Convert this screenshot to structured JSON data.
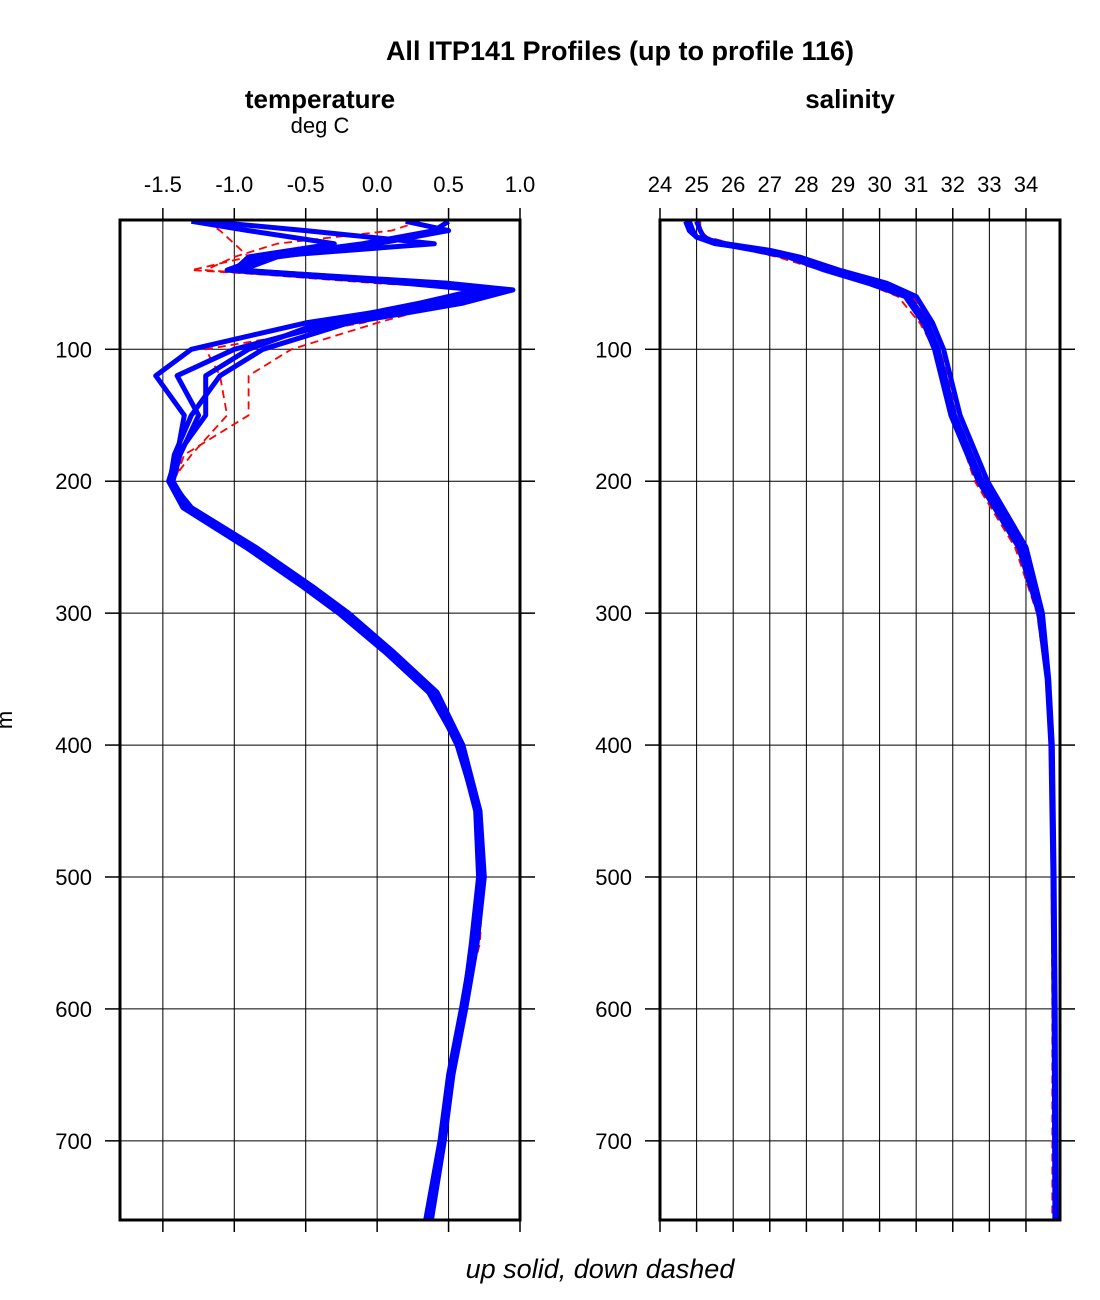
{
  "chart_data": [
    {
      "type": "line",
      "title": "All ITP141 Profiles (up to profile 116)",
      "panel_title": "temperature",
      "xlabel": "deg C",
      "ylabel": "m",
      "xlim": [
        -1.8,
        1.0
      ],
      "ylim": [
        2,
        760
      ],
      "y_reversed": true,
      "grid": true,
      "x_ticks": [
        "-1.5",
        "-1.0",
        "-0.5",
        "0.0",
        "0.5",
        "1.0"
      ],
      "x_tick_values": [
        -1.5,
        -1.0,
        -0.5,
        0.0,
        0.5,
        1.0
      ],
      "y_ticks": [
        "100",
        "200",
        "300",
        "400",
        "500",
        "600",
        "700"
      ],
      "y_tick_values": [
        100,
        200,
        300,
        400,
        500,
        600,
        700
      ],
      "depth": [
        3,
        10,
        20,
        30,
        40,
        50,
        55,
        65,
        80,
        100,
        120,
        150,
        180,
        200,
        220,
        250,
        280,
        300,
        330,
        360,
        400,
        450,
        500,
        550,
        600,
        650,
        700,
        760
      ],
      "series": [
        {
          "style": "up",
          "values": [
            0.5,
            0.4,
            -0.1,
            -0.8,
            -1.0,
            0.5,
            0.95,
            0.6,
            -0.2,
            -0.8,
            -1.1,
            -1.3,
            -1.42,
            -1.45,
            -1.35,
            -0.9,
            -0.5,
            -0.25,
            0.1,
            0.4,
            0.58,
            0.7,
            0.73,
            0.68,
            0.6,
            0.52,
            0.45,
            0.36
          ]
        },
        {
          "style": "up",
          "values": [
            -1.3,
            -0.9,
            -0.3,
            -0.9,
            -1.0,
            0.3,
            0.8,
            0.4,
            -0.5,
            -1.3,
            -1.55,
            -1.35,
            -1.4,
            -1.45,
            -1.3,
            -0.85,
            -0.45,
            -0.2,
            0.12,
            0.42,
            0.6,
            0.72,
            0.75,
            0.7,
            0.62,
            0.53,
            0.47,
            0.38
          ]
        },
        {
          "style": "up",
          "values": [
            0.2,
            0.5,
            0.0,
            -0.7,
            -0.95,
            0.4,
            0.85,
            0.5,
            -0.3,
            -1.0,
            -1.4,
            -1.25,
            -1.38,
            -1.43,
            -1.32,
            -0.88,
            -0.48,
            -0.22,
            0.08,
            0.38,
            0.56,
            0.7,
            0.72,
            0.67,
            0.59,
            0.5,
            0.44,
            0.34
          ]
        },
        {
          "style": "up",
          "values": [
            -1.2,
            -0.5,
            0.4,
            -0.8,
            -1.05,
            0.2,
            0.7,
            0.3,
            -0.4,
            -0.9,
            -1.2,
            -1.2,
            -1.4,
            -1.46,
            -1.36,
            -0.92,
            -0.52,
            -0.27,
            0.06,
            0.36,
            0.57,
            0.69,
            0.71,
            0.66,
            0.6,
            0.51,
            0.45,
            0.35
          ]
        },
        {
          "style": "down",
          "values": [
            -1.2,
            -1.1,
            -1.0,
            -0.9,
            -1.3,
            0.2,
            0.9,
            0.5,
            0.0,
            -0.6,
            -0.9,
            -0.9,
            -1.35,
            -1.42,
            -1.3,
            -0.86,
            -0.5,
            -0.24,
            0.1,
            0.38,
            0.57,
            0.71,
            0.74,
            0.72,
            0.6,
            0.52,
            0.45,
            0.37
          ]
        },
        {
          "style": "down",
          "values": [
            0.3,
            0.1,
            -0.7,
            -1.0,
            -1.2,
            0.0,
            0.8,
            0.3,
            -0.1,
            -1.2,
            -1.1,
            -1.05,
            -1.3,
            -1.44,
            -1.34,
            -0.9,
            -0.49,
            -0.26,
            0.07,
            0.35,
            0.58,
            0.7,
            0.72,
            0.69,
            0.61,
            0.51,
            0.44,
            0.36
          ]
        }
      ]
    },
    {
      "type": "line",
      "panel_title": "salinity",
      "xlim": [
        24,
        34.93
      ],
      "ylim": [
        2,
        760
      ],
      "y_reversed": true,
      "grid": true,
      "x_ticks": [
        "24",
        "25",
        "26",
        "27",
        "28",
        "29",
        "30",
        "31",
        "32",
        "33",
        "34"
      ],
      "x_tick_values": [
        24,
        25,
        26,
        27,
        28,
        29,
        30,
        31,
        32,
        33,
        34
      ],
      "y_ticks": [
        "100",
        "200",
        "300",
        "400",
        "500",
        "600",
        "700"
      ],
      "y_tick_values": [
        100,
        200,
        300,
        400,
        500,
        600,
        700
      ],
      "depth": [
        3,
        10,
        15,
        20,
        25,
        30,
        40,
        50,
        60,
        80,
        100,
        150,
        200,
        250,
        300,
        350,
        400,
        500,
        600,
        760
      ],
      "series": [
        {
          "style": "up",
          "values": [
            24.8,
            24.9,
            25.0,
            25.5,
            26.8,
            27.6,
            28.6,
            29.9,
            30.8,
            31.3,
            31.6,
            32.05,
            32.8,
            33.9,
            34.4,
            34.6,
            34.7,
            34.75,
            34.78,
            34.8
          ]
        },
        {
          "style": "up",
          "values": [
            24.7,
            24.8,
            25.0,
            25.8,
            27.0,
            27.8,
            28.9,
            30.2,
            31.0,
            31.45,
            31.75,
            32.2,
            32.95,
            34.0,
            34.45,
            34.62,
            34.72,
            34.77,
            34.8,
            34.82
          ]
        },
        {
          "style": "up",
          "values": [
            25.0,
            25.1,
            25.2,
            25.6,
            26.6,
            27.5,
            28.5,
            29.7,
            30.7,
            31.2,
            31.5,
            31.95,
            32.7,
            33.8,
            34.35,
            34.58,
            34.68,
            34.74,
            34.77,
            34.79
          ]
        },
        {
          "style": "down",
          "values": [
            24.8,
            24.9,
            25.0,
            25.6,
            26.4,
            27.2,
            28.4,
            29.6,
            30.5,
            31.1,
            31.5,
            32.0,
            32.6,
            33.7,
            34.3,
            34.55,
            34.65,
            34.7,
            34.72,
            34.72
          ]
        },
        {
          "style": "down",
          "values": [
            25.1,
            25.1,
            25.3,
            26.0,
            27.2,
            27.9,
            28.8,
            30.0,
            30.9,
            31.4,
            31.7,
            32.1,
            32.85,
            33.85,
            34.4,
            34.6,
            34.7,
            34.76,
            34.82,
            34.85
          ]
        }
      ]
    }
  ],
  "footer": "up solid, down dashed",
  "colors": {
    "up": "#0000ff",
    "down": "#ff0000"
  }
}
